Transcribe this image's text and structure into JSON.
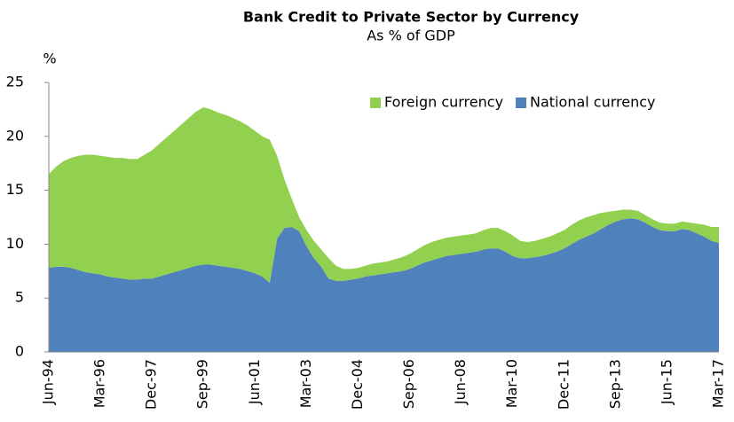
{
  "chart_data": {
    "type": "area",
    "stacked": true,
    "title": "Bank Credit to Private Sector by Currency",
    "subtitle": "As % of GDP",
    "y_label": "%",
    "categories": [
      "Jun-94",
      null,
      null,
      null,
      null,
      null,
      null,
      "Mar-96",
      null,
      null,
      null,
      null,
      null,
      null,
      "Dec-97",
      null,
      null,
      null,
      null,
      null,
      null,
      "Sep-99",
      null,
      null,
      null,
      null,
      null,
      null,
      "Jun-01",
      null,
      null,
      null,
      null,
      null,
      null,
      "Mar-03",
      null,
      null,
      null,
      null,
      null,
      null,
      "Dec-04",
      null,
      null,
      null,
      null,
      null,
      null,
      "Sep-06",
      null,
      null,
      null,
      null,
      null,
      null,
      "Jun-08",
      null,
      null,
      null,
      null,
      null,
      null,
      "Mar-10",
      null,
      null,
      null,
      null,
      null,
      null,
      "Dec-11",
      null,
      null,
      null,
      null,
      null,
      null,
      "Sep-13",
      null,
      null,
      null,
      null,
      null,
      null,
      "Jun-15",
      null,
      null,
      null,
      null,
      null,
      null,
      "Mar-17"
    ],
    "series": [
      {
        "name": "Foreign currency",
        "color": "#92d050",
        "values": [
          8.7,
          9.3,
          9.8,
          10.2,
          10.6,
          10.9,
          11.0,
          11.0,
          11.1,
          11.1,
          11.2,
          11.2,
          11.2,
          11.5,
          11.9,
          12.3,
          12.7,
          13.1,
          13.5,
          13.9,
          14.3,
          14.6,
          14.4,
          14.2,
          14.1,
          13.9,
          13.7,
          13.5,
          13.2,
          13.0,
          13.3,
          7.7,
          4.5,
          2.6,
          1.3,
          1.5,
          1.6,
          1.6,
          1.9,
          1.4,
          1.1,
          1.0,
          1.0,
          1.0,
          1.1,
          1.1,
          1.1,
          1.2,
          1.3,
          1.4,
          1.5,
          1.6,
          1.7,
          1.7,
          1.7,
          1.7,
          1.7,
          1.7,
          1.7,
          1.8,
          1.9,
          1.9,
          1.9,
          1.9,
          1.6,
          1.5,
          1.5,
          1.6,
          1.6,
          1.7,
          1.7,
          1.8,
          1.8,
          1.8,
          1.7,
          1.5,
          1.2,
          1.0,
          0.9,
          0.8,
          0.8,
          0.7,
          0.7,
          0.7,
          0.7,
          0.7,
          0.7,
          0.7,
          0.9,
          1.1,
          1.3,
          1.5
        ]
      },
      {
        "name": "National currency",
        "color": "#4f81bd",
        "values": [
          7.8,
          7.9,
          7.9,
          7.8,
          7.6,
          7.4,
          7.3,
          7.2,
          7.0,
          6.9,
          6.8,
          6.7,
          6.7,
          6.8,
          6.8,
          7.0,
          7.2,
          7.4,
          7.6,
          7.8,
          8.0,
          8.1,
          8.1,
          8.0,
          7.9,
          7.8,
          7.7,
          7.5,
          7.3,
          7.0,
          6.4,
          10.5,
          11.5,
          11.6,
          11.2,
          9.8,
          8.7,
          7.9,
          6.8,
          6.6,
          6.6,
          6.7,
          6.8,
          7.0,
          7.1,
          7.2,
          7.3,
          7.4,
          7.5,
          7.7,
          8.0,
          8.3,
          8.5,
          8.7,
          8.9,
          9.0,
          9.1,
          9.2,
          9.3,
          9.5,
          9.6,
          9.6,
          9.3,
          8.9,
          8.7,
          8.7,
          8.8,
          8.9,
          9.1,
          9.3,
          9.6,
          10.0,
          10.4,
          10.7,
          11.0,
          11.4,
          11.8,
          12.1,
          12.3,
          12.4,
          12.3,
          12.0,
          11.6,
          11.3,
          11.2,
          11.2,
          11.4,
          11.3,
          11.0,
          10.7,
          10.3,
          10.1
        ]
      }
    ],
    "ylim": [
      0,
      25
    ],
    "yticks": [
      0,
      5,
      10,
      15,
      20,
      25
    ],
    "grid": false,
    "legend": "top-right"
  }
}
